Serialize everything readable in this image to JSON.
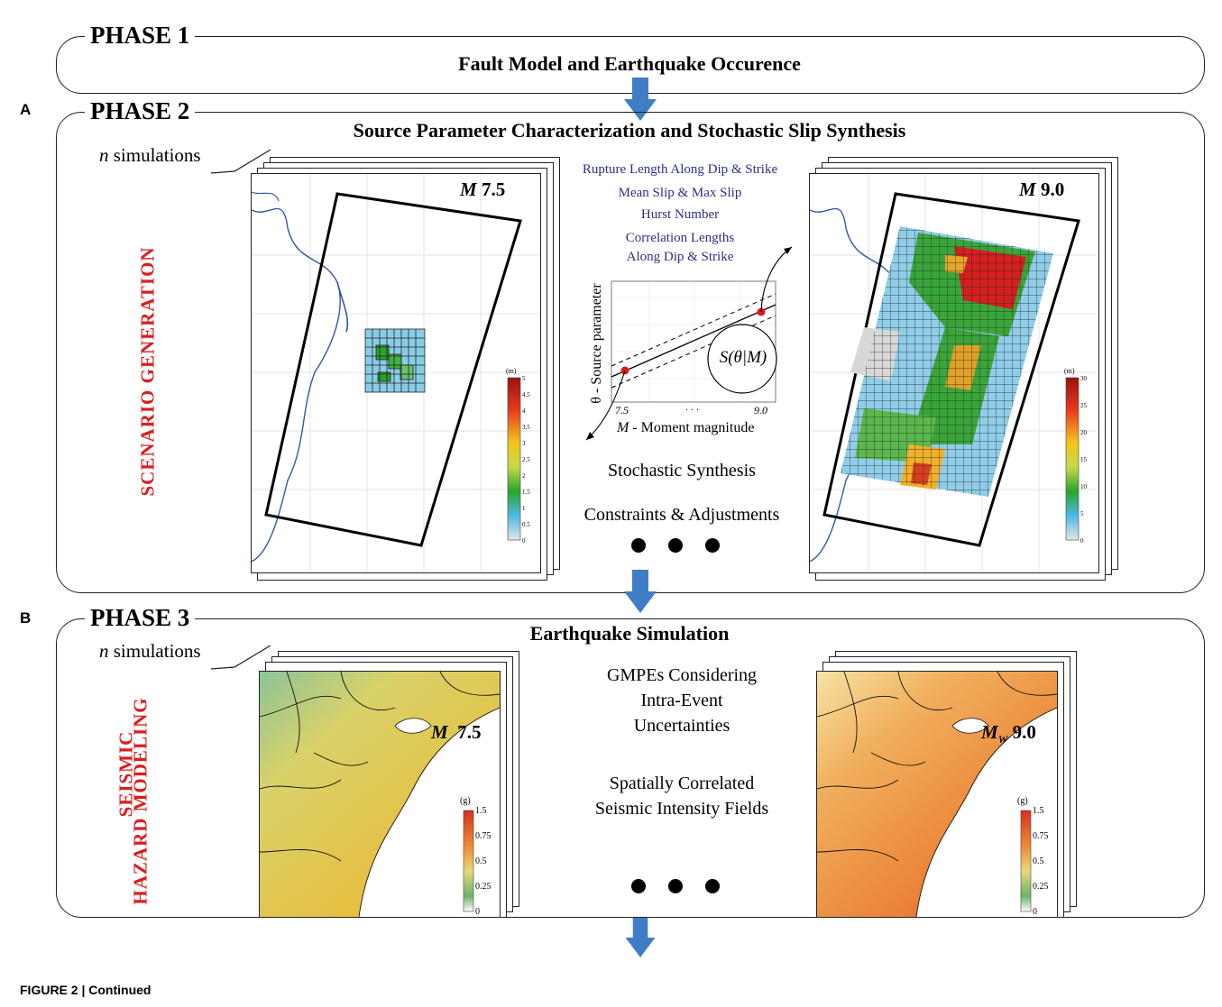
{
  "phase1": {
    "label": "PHASE 1",
    "title": "Fault Model and Earthquake Occurence"
  },
  "phase2": {
    "panel": "A",
    "label": "PHASE 2",
    "title": "Source Parameter Characterization and Stochastic Slip Synthesis",
    "n_sim_italic": "n",
    "n_sim_rest": " simulations",
    "side_label": "SCENARIO GENERATION",
    "left_mag_italic": "M",
    "left_mag_value": " 7.5",
    "right_mag_italic": "M",
    "right_mag_value": " 9.0",
    "params": [
      "Rupture Length Along Dip & Strike",
      "Mean Slip & Max Slip",
      "Hurst Number",
      "Correlation Lengths",
      "Along Dip & Strike"
    ],
    "graph": {
      "ylabel": "θ - Source parameter",
      "xlabel_italic": "M",
      "xlabel_rest": " - Moment magnitude",
      "x_tick_left": "7.5",
      "x_tick_mid": ". . .",
      "x_tick_right": "9.0",
      "circle_label": "S(θ|M)"
    },
    "stochastic": "Stochastic Synthesis",
    "constraints": "Constraints & Adjustments",
    "left_cbar": {
      "unit": "(m)",
      "ticks": [
        "5",
        "4.5",
        "4",
        "3.5",
        "3",
        "2.5",
        "2",
        "1.5",
        "1",
        "0.5",
        "0"
      ]
    },
    "right_cbar": {
      "unit": "(m)",
      "ticks": [
        "30",
        "25",
        "20",
        "15",
        "10",
        "5",
        "0"
      ]
    }
  },
  "phase3": {
    "panel": "B",
    "label": "PHASE 3",
    "title": "Earthquake Simulation",
    "n_sim_italic": "n",
    "n_sim_rest": " simulations",
    "side_label_1": "SEISMIC",
    "side_label_2": "HAZARD MODELING",
    "gmpe_lines": [
      "GMPEs Considering",
      "Intra-Event",
      "Uncertainties"
    ],
    "field_lines": [
      "Spatially Correlated",
      "Seismic Intensity Fields"
    ],
    "left_mag_italic": "M",
    "left_mag_value": "  7.5",
    "right_mag_italic": "M",
    "right_mag_sub": "W",
    "right_mag_value": " 9.0",
    "cbar": {
      "unit": "(g)",
      "ticks": [
        "1.5",
        "0.75",
        "0.5",
        "0.25",
        "0"
      ]
    }
  },
  "caption": "FIGURE 2 | Continued",
  "colors": {
    "arrow": "#3f7ec6",
    "accent_red": "#d81e1e",
    "param_blue": "#2d2f86",
    "coast": "#3557a8"
  }
}
